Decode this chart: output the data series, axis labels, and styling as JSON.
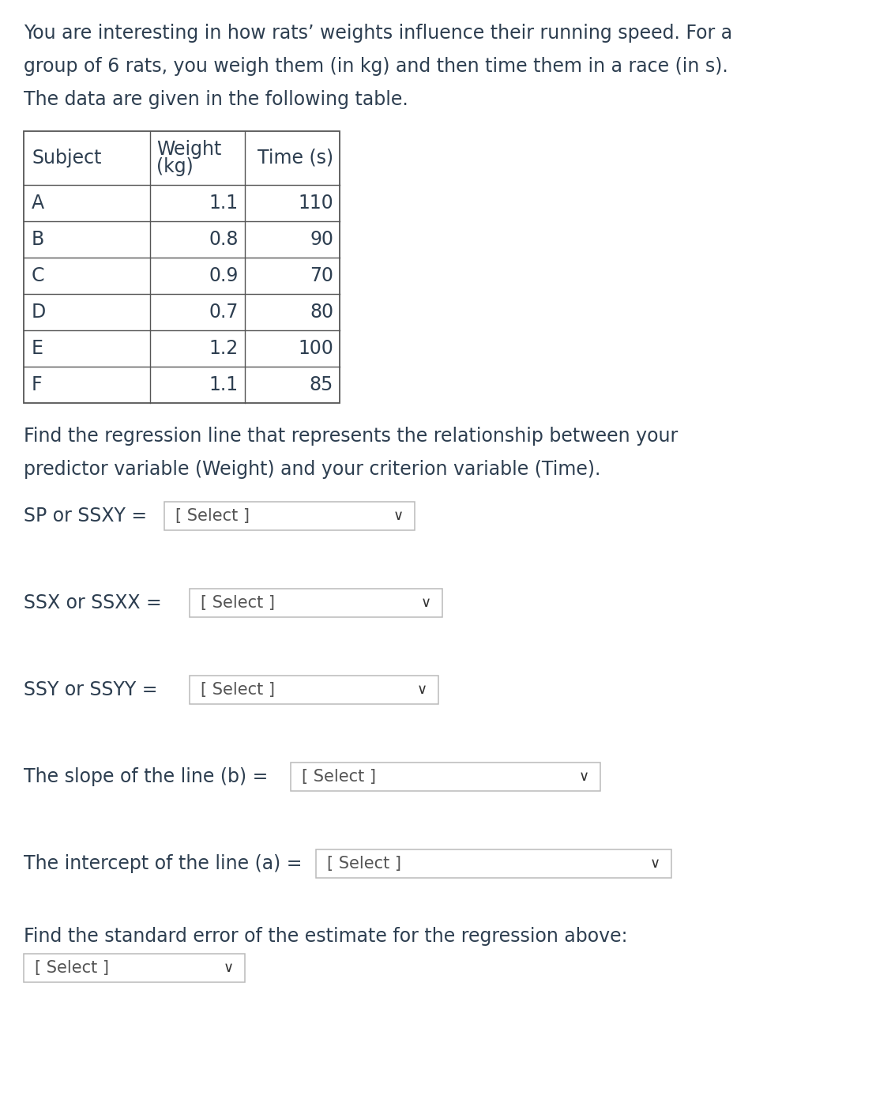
{
  "intro_line1": "You are interesting in how rats’ weights influence their running speed. For a",
  "intro_line2": "group of 6 rats, you weigh them (in kg) and then time them in a race (in s).",
  "intro_line3": "The data are given in the following table.",
  "table_headers_col0": "Subject",
  "table_headers_col1a": "Weight",
  "table_headers_col1b": "(kg)",
  "table_headers_col2": "Time (s)",
  "table_data": [
    [
      "A",
      "1.1",
      "110"
    ],
    [
      "B",
      "0.8",
      "90"
    ],
    [
      "C",
      "0.9",
      "70"
    ],
    [
      "D",
      "0.7",
      "80"
    ],
    [
      "E",
      "1.2",
      "100"
    ],
    [
      "F",
      "1.1",
      "85"
    ]
  ],
  "reg_line1": "Find the regression line that represents the relationship between your",
  "reg_line2": "predictor variable (Weight) and your criterion variable (Time).",
  "eq1_label": "SP or SSXY =",
  "eq2_label": "SSX or SSXX =",
  "eq3_label": "SSY or SSYY =",
  "eq4_label": "The slope of the line (b) =",
  "eq5_label": "The intercept of the line (a) =",
  "std_err_text": "Find the standard error of the estimate for the regression above:",
  "select_text": "[ Select ]",
  "bg_color": "#ffffff",
  "text_color": "#2d3e50",
  "border_color": "#aaaaaa",
  "font_size_body": 17,
  "font_size_table": 17,
  "font_size_select": 15,
  "font_size_chevron": 13
}
